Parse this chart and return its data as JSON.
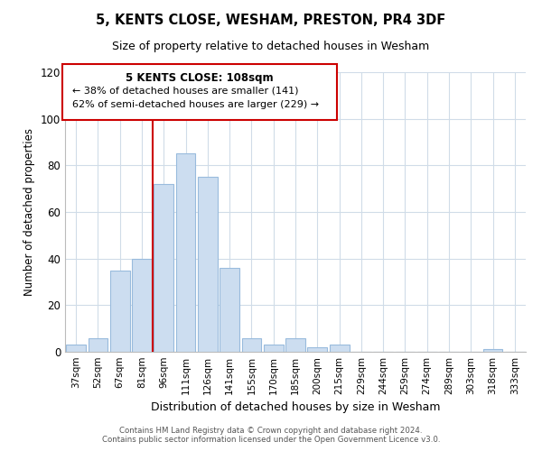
{
  "title": "5, KENTS CLOSE, WESHAM, PRESTON, PR4 3DF",
  "subtitle": "Size of property relative to detached houses in Wesham",
  "xlabel": "Distribution of detached houses by size in Wesham",
  "ylabel": "Number of detached properties",
  "categories": [
    "37sqm",
    "52sqm",
    "67sqm",
    "81sqm",
    "96sqm",
    "111sqm",
    "126sqm",
    "141sqm",
    "155sqm",
    "170sqm",
    "185sqm",
    "200sqm",
    "215sqm",
    "229sqm",
    "244sqm",
    "259sqm",
    "274sqm",
    "289sqm",
    "303sqm",
    "318sqm",
    "333sqm"
  ],
  "values": [
    3,
    6,
    35,
    40,
    72,
    85,
    75,
    36,
    6,
    3,
    6,
    2,
    3,
    0,
    0,
    0,
    0,
    0,
    0,
    1,
    0
  ],
  "bar_color": "#ccddf0",
  "bar_edge_color": "#99bbdd",
  "vline_index": 4,
  "vline_color": "#cc0000",
  "ylim": [
    0,
    120
  ],
  "yticks": [
    0,
    20,
    40,
    60,
    80,
    100,
    120
  ],
  "annotation_title": "5 KENTS CLOSE: 108sqm",
  "annotation_line1": "← 38% of detached houses are smaller (141)",
  "annotation_line2": "62% of semi-detached houses are larger (229) →",
  "annotation_box_color": "#ffffff",
  "annotation_box_edge": "#cc0000",
  "footer1": "Contains HM Land Registry data © Crown copyright and database right 2024.",
  "footer2": "Contains public sector information licensed under the Open Government Licence v3.0.",
  "background_color": "#ffffff",
  "grid_color": "#d0dce8"
}
